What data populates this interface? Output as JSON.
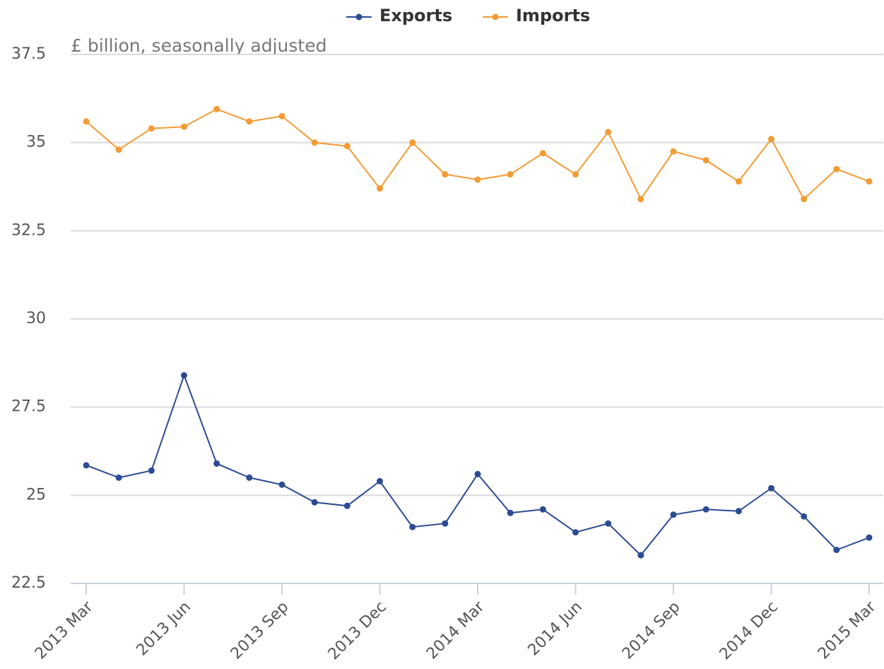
{
  "chart_data": {
    "type": "line",
    "subtitle": "£ billion, seasonally adjusted",
    "categories": [
      "2013 Mar",
      null,
      null,
      "2013 Jun",
      null,
      null,
      "2013 Sep",
      null,
      null,
      "2013 Dec",
      null,
      null,
      "2014 Mar",
      null,
      null,
      "2014 Jun",
      null,
      null,
      "2014 Sep",
      null,
      null,
      "2014 Dec",
      null,
      null,
      "2015 Mar"
    ],
    "series": [
      {
        "name": "Exports",
        "color": "#2c4b94",
        "values": [
          25.85,
          25.5,
          25.7,
          28.4,
          25.9,
          25.5,
          25.3,
          24.8,
          24.7,
          25.4,
          24.1,
          24.2,
          25.6,
          24.5,
          24.6,
          23.95,
          24.2,
          23.3,
          24.45,
          24.6,
          24.55,
          25.2,
          24.4,
          23.45,
          23.8
        ]
      },
      {
        "name": "Imports",
        "color": "#f39b34",
        "values": [
          35.6,
          34.8,
          35.4,
          35.45,
          35.95,
          35.6,
          35.75,
          35.0,
          34.9,
          33.7,
          35.0,
          34.1,
          33.95,
          34.1,
          34.7,
          34.1,
          35.3,
          33.4,
          34.75,
          34.5,
          33.9,
          35.1,
          33.4,
          34.25,
          33.9
        ]
      }
    ],
    "ylim": [
      22.5,
      37.5
    ],
    "yticks": [
      22.5,
      25,
      27.5,
      30,
      32.5,
      35,
      37.5
    ],
    "grid": true,
    "legend": "top"
  }
}
